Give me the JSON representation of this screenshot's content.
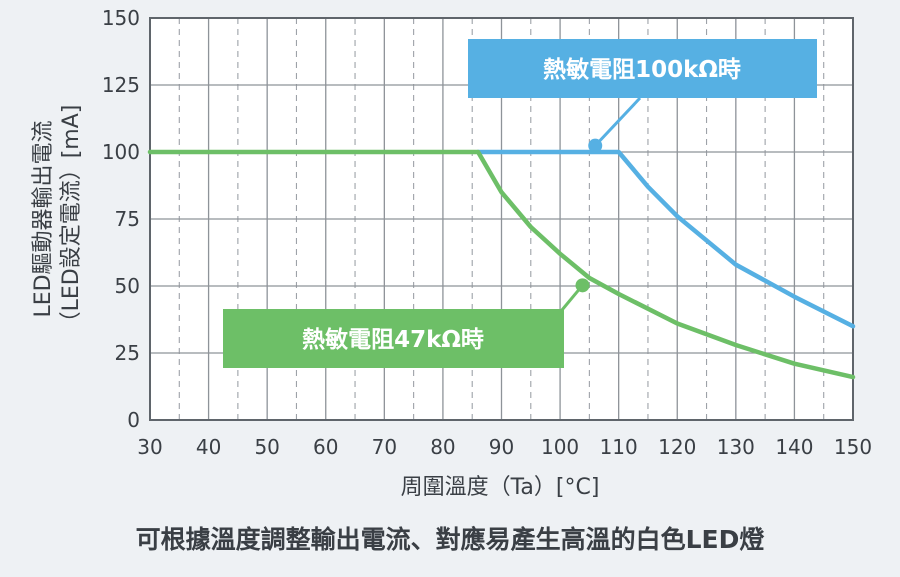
{
  "chart_data": {
    "type": "line",
    "ylabel_line1": "LED驅動器輸出電流",
    "ylabel_line2": "（LED設定電流）[mA]",
    "xlabel": "周圍溫度（Ta）[°C]",
    "caption": "可根據溫度調整輸出電流、對應易產生高溫的白色LED燈",
    "xlim": [
      30,
      150
    ],
    "ylim": [
      0,
      150
    ],
    "x_ticks": [
      30,
      40,
      50,
      60,
      70,
      80,
      90,
      100,
      110,
      120,
      130,
      140,
      150
    ],
    "y_ticks": [
      0,
      25,
      50,
      75,
      100,
      125,
      150
    ],
    "grid": true,
    "series": [
      {
        "name": "熱敏電阻47kΩ時",
        "color": "#6dbf67",
        "x": [
          30,
          86,
          90,
          95,
          100,
          105,
          110,
          120,
          130,
          140,
          150
        ],
        "y": [
          100,
          100,
          85,
          72,
          62,
          53,
          47,
          36,
          28,
          21,
          16
        ]
      },
      {
        "name": "熱敏電阻100kΩ時",
        "color": "#56b0e3",
        "x": [
          86,
          110,
          115,
          120,
          130,
          140,
          150
        ],
        "y": [
          100,
          100,
          87,
          76,
          58,
          46,
          35
        ]
      }
    ],
    "annotations": [
      {
        "text": "熱敏電阻100kΩ時",
        "series": "熱敏電阻100kΩ時",
        "point": [
          106,
          102
        ]
      },
      {
        "text": "熱敏電阻47kΩ時",
        "series": "熱敏電阻47kΩ時",
        "point": [
          104,
          51
        ]
      }
    ]
  }
}
